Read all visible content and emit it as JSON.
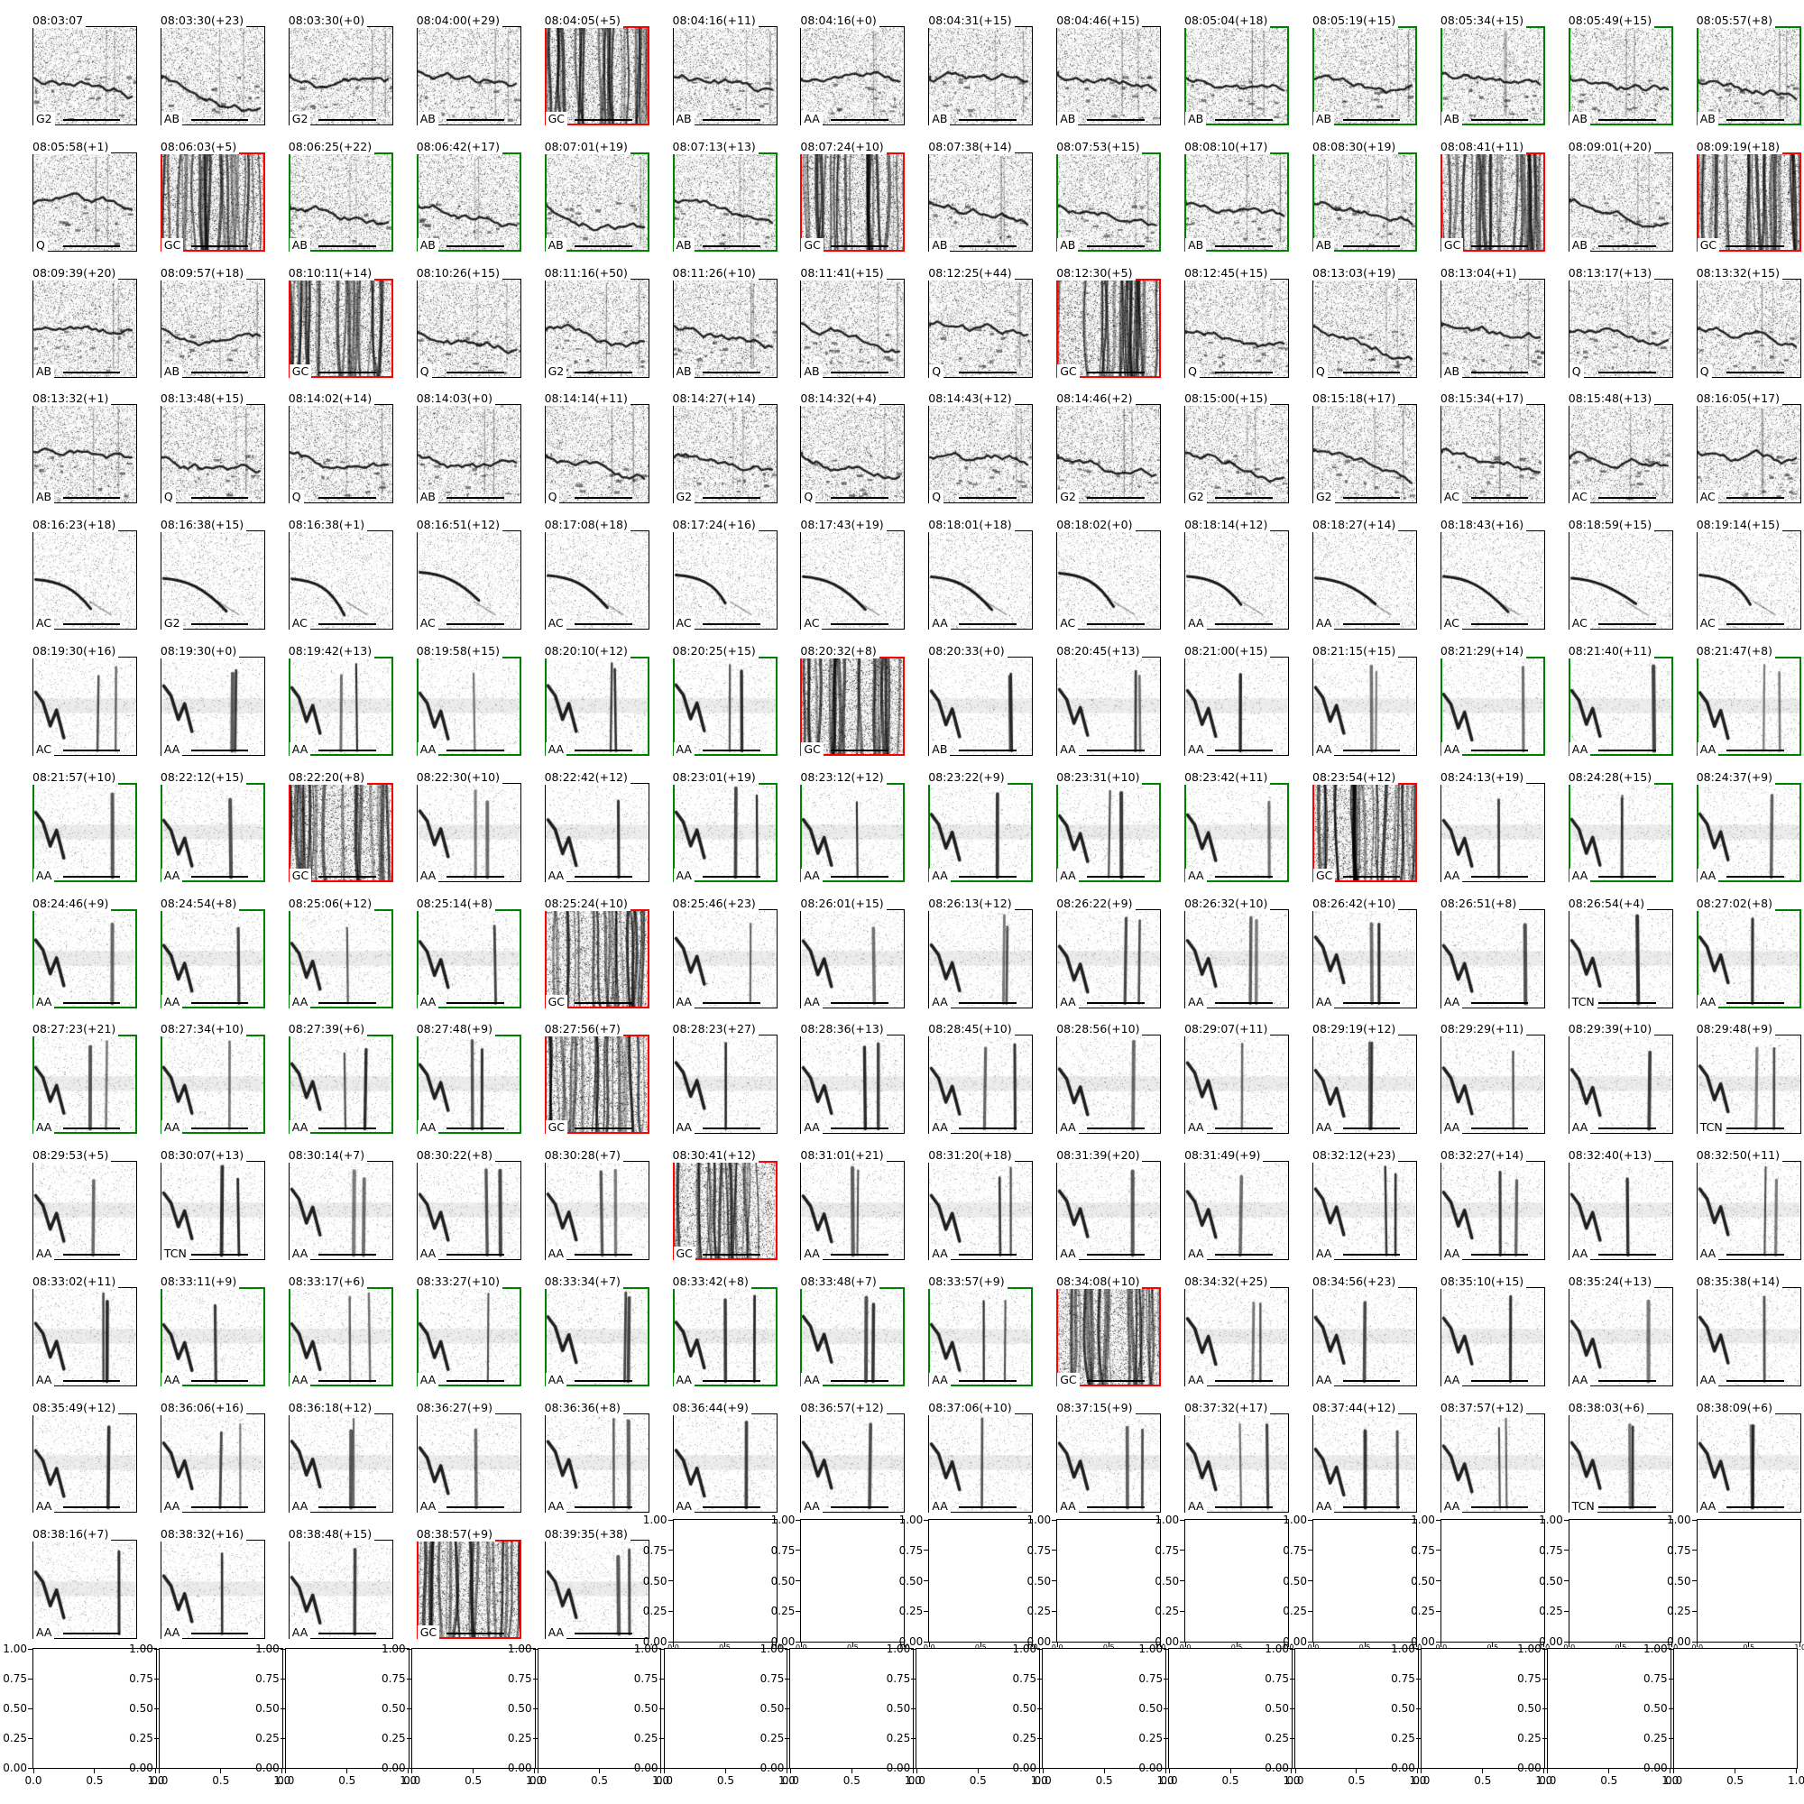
{
  "figure": {
    "background": "#ffffff",
    "columns": 14,
    "border_colors": {
      "k": "#000000",
      "r": "#ff0000",
      "g": "#008000"
    }
  },
  "chart_data": {
    "type": "heatmap",
    "description": "Grid of audio spectrogram thumbnails. Each cell title is a clock time with (+seconds gap) suffix; bottom-left tag is a call-type label; cell border color (black/red/green) marks status. Trailing grid slots are empty axes with 0-1 tick scales.",
    "columns": 14,
    "rows": [
      {
        "cells": [
          {
            "t": "08:03:07",
            "l": "G2",
            "b": "k"
          },
          {
            "t": "08:03:30(+23)",
            "l": "AB",
            "b": "k"
          },
          {
            "t": "08:03:30(+0)",
            "l": "G2",
            "b": "k"
          },
          {
            "t": "08:04:00(+29)",
            "l": "AB",
            "b": "k"
          },
          {
            "t": "08:04:05(+5)",
            "l": "GC",
            "b": "r"
          },
          {
            "t": "08:04:16(+11)",
            "l": "AB",
            "b": "k"
          },
          {
            "t": "08:04:16(+0)",
            "l": "AA",
            "b": "k"
          },
          {
            "t": "08:04:31(+15)",
            "l": "AB",
            "b": "k"
          },
          {
            "t": "08:04:46(+15)",
            "l": "AB",
            "b": "k"
          },
          {
            "t": "08:05:04(+18)",
            "l": "AB",
            "b": "g"
          },
          {
            "t": "08:05:19(+15)",
            "l": "AB",
            "b": "g"
          },
          {
            "t": "08:05:34(+15)",
            "l": "AB",
            "b": "g"
          },
          {
            "t": "08:05:49(+15)",
            "l": "AB",
            "b": "g"
          },
          {
            "t": "08:05:57(+8)",
            "l": "AB",
            "b": "g"
          }
        ]
      },
      {
        "cells": [
          {
            "t": "08:05:58(+1)",
            "l": "Q",
            "b": "k"
          },
          {
            "t": "08:06:03(+5)",
            "l": "GC",
            "b": "r"
          },
          {
            "t": "08:06:25(+22)",
            "l": "AB",
            "b": "g"
          },
          {
            "t": "08:06:42(+17)",
            "l": "AB",
            "b": "g"
          },
          {
            "t": "08:07:01(+19)",
            "l": "AB",
            "b": "g"
          },
          {
            "t": "08:07:13(+13)",
            "l": "AB",
            "b": "g"
          },
          {
            "t": "08:07:24(+10)",
            "l": "GC",
            "b": "r"
          },
          {
            "t": "08:07:38(+14)",
            "l": "AB",
            "b": "k"
          },
          {
            "t": "08:07:53(+15)",
            "l": "AB",
            "b": "g"
          },
          {
            "t": "08:08:10(+17)",
            "l": "AB",
            "b": "g"
          },
          {
            "t": "08:08:30(+19)",
            "l": "AB",
            "b": "g"
          },
          {
            "t": "08:08:41(+11)",
            "l": "GC",
            "b": "r"
          },
          {
            "t": "08:09:01(+20)",
            "l": "AB",
            "b": "k"
          },
          {
            "t": "08:09:19(+18)",
            "l": "GC",
            "b": "r"
          }
        ]
      },
      {
        "cells": [
          {
            "t": "08:09:39(+20)",
            "l": "AB",
            "b": "k"
          },
          {
            "t": "08:09:57(+18)",
            "l": "AB",
            "b": "k"
          },
          {
            "t": "08:10:11(+14)",
            "l": "GC",
            "b": "r"
          },
          {
            "t": "08:10:26(+15)",
            "l": "Q",
            "b": "k"
          },
          {
            "t": "08:11:16(+50)",
            "l": "G2",
            "b": "k"
          },
          {
            "t": "08:11:26(+10)",
            "l": "AB",
            "b": "k"
          },
          {
            "t": "08:11:41(+15)",
            "l": "AB",
            "b": "k"
          },
          {
            "t": "08:12:25(+44)",
            "l": "Q",
            "b": "k"
          },
          {
            "t": "08:12:30(+5)",
            "l": "GC",
            "b": "r"
          },
          {
            "t": "08:12:45(+15)",
            "l": "Q",
            "b": "k"
          },
          {
            "t": "08:13:03(+19)",
            "l": "Q",
            "b": "k"
          },
          {
            "t": "08:13:04(+1)",
            "l": "AB",
            "b": "k"
          },
          {
            "t": "08:13:17(+13)",
            "l": "Q",
            "b": "k"
          },
          {
            "t": "08:13:32(+15)",
            "l": "Q",
            "b": "k"
          }
        ]
      },
      {
        "cells": [
          {
            "t": "08:13:32(+1)",
            "l": "AB",
            "b": "k"
          },
          {
            "t": "08:13:48(+15)",
            "l": "Q",
            "b": "k"
          },
          {
            "t": "08:14:02(+14)",
            "l": "Q",
            "b": "k"
          },
          {
            "t": "08:14:03(+0)",
            "l": "AB",
            "b": "k"
          },
          {
            "t": "08:14:14(+11)",
            "l": "Q",
            "b": "k"
          },
          {
            "t": "08:14:27(+14)",
            "l": "G2",
            "b": "k"
          },
          {
            "t": "08:14:32(+4)",
            "l": "Q",
            "b": "k"
          },
          {
            "t": "08:14:43(+12)",
            "l": "Q",
            "b": "k"
          },
          {
            "t": "08:14:46(+2)",
            "l": "G2",
            "b": "k"
          },
          {
            "t": "08:15:00(+15)",
            "l": "G2",
            "b": "k"
          },
          {
            "t": "08:15:18(+17)",
            "l": "G2",
            "b": "k"
          },
          {
            "t": "08:15:34(+17)",
            "l": "AC",
            "b": "k"
          },
          {
            "t": "08:15:48(+13)",
            "l": "AC",
            "b": "k"
          },
          {
            "t": "08:16:05(+17)",
            "l": "AC",
            "b": "k"
          }
        ]
      },
      {
        "cells": [
          {
            "t": "08:16:23(+18)",
            "l": "AC",
            "b": "k"
          },
          {
            "t": "08:16:38(+15)",
            "l": "G2",
            "b": "k"
          },
          {
            "t": "08:16:38(+1)",
            "l": "AC",
            "b": "k"
          },
          {
            "t": "08:16:51(+12)",
            "l": "AC",
            "b": "k"
          },
          {
            "t": "08:17:08(+18)",
            "l": "AC",
            "b": "k"
          },
          {
            "t": "08:17:24(+16)",
            "l": "AC",
            "b": "k"
          },
          {
            "t": "08:17:43(+19)",
            "l": "AC",
            "b": "k"
          },
          {
            "t": "08:18:01(+18)",
            "l": "AA",
            "b": "k"
          },
          {
            "t": "08:18:02(+0)",
            "l": "AC",
            "b": "k"
          },
          {
            "t": "08:18:14(+12)",
            "l": "AA",
            "b": "k"
          },
          {
            "t": "08:18:27(+14)",
            "l": "AA",
            "b": "k"
          },
          {
            "t": "08:18:43(+16)",
            "l": "AC",
            "b": "k"
          },
          {
            "t": "08:18:59(+15)",
            "l": "AC",
            "b": "k"
          },
          {
            "t": "08:19:14(+15)",
            "l": "AC",
            "b": "k"
          }
        ]
      },
      {
        "cells": [
          {
            "t": "08:19:30(+16)",
            "l": "AC",
            "b": "k"
          },
          {
            "t": "08:19:30(+0)",
            "l": "AA",
            "b": "k"
          },
          {
            "t": "08:19:42(+13)",
            "l": "AA",
            "b": "g"
          },
          {
            "t": "08:19:58(+15)",
            "l": "AA",
            "b": "g"
          },
          {
            "t": "08:20:10(+12)",
            "l": "AA",
            "b": "g"
          },
          {
            "t": "08:20:25(+15)",
            "l": "AA",
            "b": "g"
          },
          {
            "t": "08:20:32(+8)",
            "l": "GC",
            "b": "r"
          },
          {
            "t": "08:20:33(+0)",
            "l": "AB",
            "b": "k"
          },
          {
            "t": "08:20:45(+13)",
            "l": "AA",
            "b": "k"
          },
          {
            "t": "08:21:00(+15)",
            "l": "AA",
            "b": "k"
          },
          {
            "t": "08:21:15(+15)",
            "l": "AA",
            "b": "k"
          },
          {
            "t": "08:21:29(+14)",
            "l": "AA",
            "b": "g"
          },
          {
            "t": "08:21:40(+11)",
            "l": "AA",
            "b": "g"
          },
          {
            "t": "08:21:47(+8)",
            "l": "AA",
            "b": "g"
          }
        ]
      },
      {
        "cells": [
          {
            "t": "08:21:57(+10)",
            "l": "AA",
            "b": "g"
          },
          {
            "t": "08:22:12(+15)",
            "l": "AA",
            "b": "g"
          },
          {
            "t": "08:22:20(+8)",
            "l": "GC",
            "b": "r"
          },
          {
            "t": "08:22:30(+10)",
            "l": "AA",
            "b": "k"
          },
          {
            "t": "08:22:42(+12)",
            "l": "AA",
            "b": "k"
          },
          {
            "t": "08:23:01(+19)",
            "l": "AA",
            "b": "g"
          },
          {
            "t": "08:23:12(+12)",
            "l": "AA",
            "b": "g"
          },
          {
            "t": "08:23:22(+9)",
            "l": "AA",
            "b": "g"
          },
          {
            "t": "08:23:31(+10)",
            "l": "AA",
            "b": "g"
          },
          {
            "t": "08:23:42(+11)",
            "l": "AA",
            "b": "g"
          },
          {
            "t": "08:23:54(+12)",
            "l": "GC",
            "b": "r"
          },
          {
            "t": "08:24:13(+19)",
            "l": "AA",
            "b": "k"
          },
          {
            "t": "08:24:28(+15)",
            "l": "AA",
            "b": "g"
          },
          {
            "t": "08:24:37(+9)",
            "l": "AA",
            "b": "g"
          }
        ]
      },
      {
        "cells": [
          {
            "t": "08:24:46(+9)",
            "l": "AA",
            "b": "g"
          },
          {
            "t": "08:24:54(+8)",
            "l": "AA",
            "b": "g"
          },
          {
            "t": "08:25:06(+12)",
            "l": "AA",
            "b": "g"
          },
          {
            "t": "08:25:14(+8)",
            "l": "AA",
            "b": "g"
          },
          {
            "t": "08:25:24(+10)",
            "l": "GC",
            "b": "r"
          },
          {
            "t": "08:25:46(+23)",
            "l": "AA",
            "b": "k"
          },
          {
            "t": "08:26:01(+15)",
            "l": "AA",
            "b": "k"
          },
          {
            "t": "08:26:13(+12)",
            "l": "AA",
            "b": "k"
          },
          {
            "t": "08:26:22(+9)",
            "l": "AA",
            "b": "k"
          },
          {
            "t": "08:26:32(+10)",
            "l": "AA",
            "b": "k"
          },
          {
            "t": "08:26:42(+10)",
            "l": "AA",
            "b": "k"
          },
          {
            "t": "08:26:51(+8)",
            "l": "AA",
            "b": "k"
          },
          {
            "t": "08:26:54(+4)",
            "l": "TCN",
            "b": "k"
          },
          {
            "t": "08:27:02(+8)",
            "l": "AA",
            "b": "g"
          }
        ]
      },
      {
        "cells": [
          {
            "t": "08:27:23(+21)",
            "l": "AA",
            "b": "g"
          },
          {
            "t": "08:27:34(+10)",
            "l": "AA",
            "b": "g"
          },
          {
            "t": "08:27:39(+6)",
            "l": "AA",
            "b": "g"
          },
          {
            "t": "08:27:48(+9)",
            "l": "AA",
            "b": "g"
          },
          {
            "t": "08:27:56(+7)",
            "l": "GC",
            "b": "r"
          },
          {
            "t": "08:28:23(+27)",
            "l": "AA",
            "b": "k"
          },
          {
            "t": "08:28:36(+13)",
            "l": "AA",
            "b": "k"
          },
          {
            "t": "08:28:45(+10)",
            "l": "AA",
            "b": "k"
          },
          {
            "t": "08:28:56(+10)",
            "l": "AA",
            "b": "k"
          },
          {
            "t": "08:29:07(+11)",
            "l": "AA",
            "b": "k"
          },
          {
            "t": "08:29:19(+12)",
            "l": "AA",
            "b": "k"
          },
          {
            "t": "08:29:29(+11)",
            "l": "AA",
            "b": "k"
          },
          {
            "t": "08:29:39(+10)",
            "l": "AA",
            "b": "k"
          },
          {
            "t": "08:29:48(+9)",
            "l": "TCN",
            "b": "k"
          }
        ]
      },
      {
        "cells": [
          {
            "t": "08:29:53(+5)",
            "l": "AA",
            "b": "k"
          },
          {
            "t": "08:30:07(+13)",
            "l": "TCN",
            "b": "k"
          },
          {
            "t": "08:30:14(+7)",
            "l": "AA",
            "b": "k"
          },
          {
            "t": "08:30:22(+8)",
            "l": "AA",
            "b": "k"
          },
          {
            "t": "08:30:28(+7)",
            "l": "AA",
            "b": "k"
          },
          {
            "t": "08:30:41(+12)",
            "l": "GC",
            "b": "r"
          },
          {
            "t": "08:31:01(+21)",
            "l": "AA",
            "b": "k"
          },
          {
            "t": "08:31:20(+18)",
            "l": "AA",
            "b": "k"
          },
          {
            "t": "08:31:39(+20)",
            "l": "AA",
            "b": "k"
          },
          {
            "t": "08:31:49(+9)",
            "l": "AA",
            "b": "k"
          },
          {
            "t": "08:32:12(+23)",
            "l": "AA",
            "b": "k"
          },
          {
            "t": "08:32:27(+14)",
            "l": "AA",
            "b": "k"
          },
          {
            "t": "08:32:40(+13)",
            "l": "AA",
            "b": "k"
          },
          {
            "t": "08:32:50(+11)",
            "l": "AA",
            "b": "k"
          }
        ]
      },
      {
        "cells": [
          {
            "t": "08:33:02(+11)",
            "l": "AA",
            "b": "k"
          },
          {
            "t": "08:33:11(+9)",
            "l": "AA",
            "b": "g"
          },
          {
            "t": "08:33:17(+6)",
            "l": "AA",
            "b": "g"
          },
          {
            "t": "08:33:27(+10)",
            "l": "AA",
            "b": "g"
          },
          {
            "t": "08:33:34(+7)",
            "l": "AA",
            "b": "g"
          },
          {
            "t": "08:33:42(+8)",
            "l": "AA",
            "b": "g"
          },
          {
            "t": "08:33:48(+7)",
            "l": "AA",
            "b": "g"
          },
          {
            "t": "08:33:57(+9)",
            "l": "AA",
            "b": "g"
          },
          {
            "t": "08:34:08(+10)",
            "l": "GC",
            "b": "r"
          },
          {
            "t": "08:34:32(+25)",
            "l": "AA",
            "b": "k"
          },
          {
            "t": "08:34:56(+23)",
            "l": "AA",
            "b": "k"
          },
          {
            "t": "08:35:10(+15)",
            "l": "AA",
            "b": "k"
          },
          {
            "t": "08:35:24(+13)",
            "l": "AA",
            "b": "k"
          },
          {
            "t": "08:35:38(+14)",
            "l": "AA",
            "b": "k"
          }
        ]
      },
      {
        "cells": [
          {
            "t": "08:35:49(+12)",
            "l": "AA",
            "b": "k"
          },
          {
            "t": "08:36:06(+16)",
            "l": "AA",
            "b": "k"
          },
          {
            "t": "08:36:18(+12)",
            "l": "AA",
            "b": "k"
          },
          {
            "t": "08:36:27(+9)",
            "l": "AA",
            "b": "k"
          },
          {
            "t": "08:36:36(+8)",
            "l": "AA",
            "b": "k"
          },
          {
            "t": "08:36:44(+9)",
            "l": "AA",
            "b": "k"
          },
          {
            "t": "08:36:57(+12)",
            "l": "AA",
            "b": "k"
          },
          {
            "t": "08:37:06(+10)",
            "l": "AA",
            "b": "k"
          },
          {
            "t": "08:37:15(+9)",
            "l": "AA",
            "b": "k"
          },
          {
            "t": "08:37:32(+17)",
            "l": "AA",
            "b": "k"
          },
          {
            "t": "08:37:44(+12)",
            "l": "AA",
            "b": "k"
          },
          {
            "t": "08:37:57(+12)",
            "l": "AA",
            "b": "k"
          },
          {
            "t": "08:38:03(+6)",
            "l": "TCN",
            "b": "k"
          },
          {
            "t": "08:38:09(+6)",
            "l": "AA",
            "b": "k"
          }
        ]
      },
      {
        "cells": [
          {
            "t": "08:38:16(+7)",
            "l": "AA",
            "b": "k"
          },
          {
            "t": "08:38:32(+16)",
            "l": "AA",
            "b": "k"
          },
          {
            "t": "08:38:48(+15)",
            "l": "AA",
            "b": "k"
          },
          {
            "t": "08:38:57(+9)",
            "l": "GC",
            "b": "r"
          },
          {
            "t": "08:39:35(+38)",
            "l": "AA",
            "b": "k"
          }
        ]
      }
    ]
  },
  "empty_axes": {
    "row13_count": 9,
    "bottom_row_count": 14,
    "y_tick_labels": [
      "1.00",
      "0.75",
      "0.50",
      "0.25",
      "0.00"
    ],
    "x_tick_labels": [
      "0.0",
      "0.5",
      "1.0"
    ]
  }
}
